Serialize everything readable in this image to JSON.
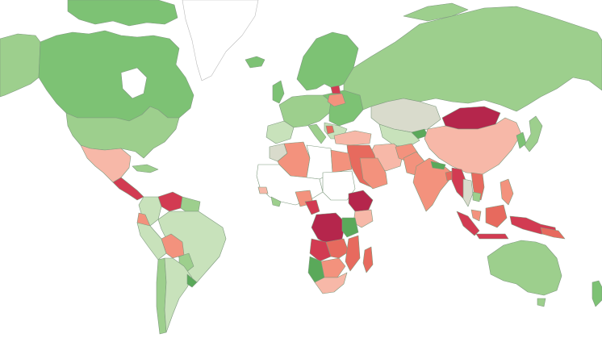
{
  "map": {
    "type": "choropleth",
    "projection": "mercator",
    "palette": {
      "ocean": "#ffffff",
      "no_data": "#ffffff",
      "neutral": "#d9dbcc",
      "green_light": "#c8e2bb",
      "green_mid": "#9dcf8d",
      "green": "#7dc274",
      "green_dark": "#5aa95a",
      "pink_light": "#f7b8a8",
      "salmon": "#f3927d",
      "red": "#e76a5e",
      "crimson": "#d23b52",
      "dark_red": "#b5264c",
      "border": "#7f9a7f"
    }
  }
}
